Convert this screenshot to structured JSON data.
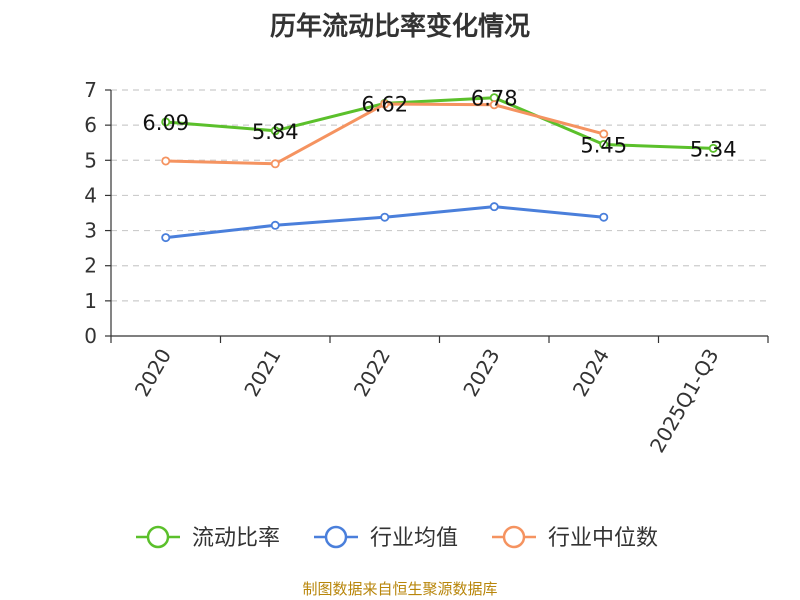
{
  "chart_data": {
    "type": "line",
    "title": "历年流动比率变化情况",
    "categories": [
      "2020",
      "2021",
      "2022",
      "2023",
      "2024",
      "2025Q1-Q3"
    ],
    "ylim": [
      0,
      7
    ],
    "yticks": [
      0,
      1,
      2,
      3,
      4,
      5,
      6,
      7
    ],
    "grid": true,
    "legend_position": "bottom",
    "series": [
      {
        "name": "流动比率",
        "color": "#5bc02b",
        "values": [
          6.09,
          5.84,
          6.62,
          6.78,
          5.45,
          5.34
        ],
        "labels": [
          "6.09",
          "5.84",
          "6.62",
          "6.78",
          "5.45",
          "5.34"
        ]
      },
      {
        "name": "行业均值",
        "color": "#4a7fdb",
        "values": [
          2.8,
          3.15,
          3.38,
          3.68,
          3.38,
          null
        ]
      },
      {
        "name": "行业中位数",
        "color": "#f59360",
        "values": [
          4.98,
          4.9,
          6.6,
          6.58,
          5.75,
          null
        ]
      }
    ]
  },
  "source": "制图数据来自恒生聚源数据库"
}
